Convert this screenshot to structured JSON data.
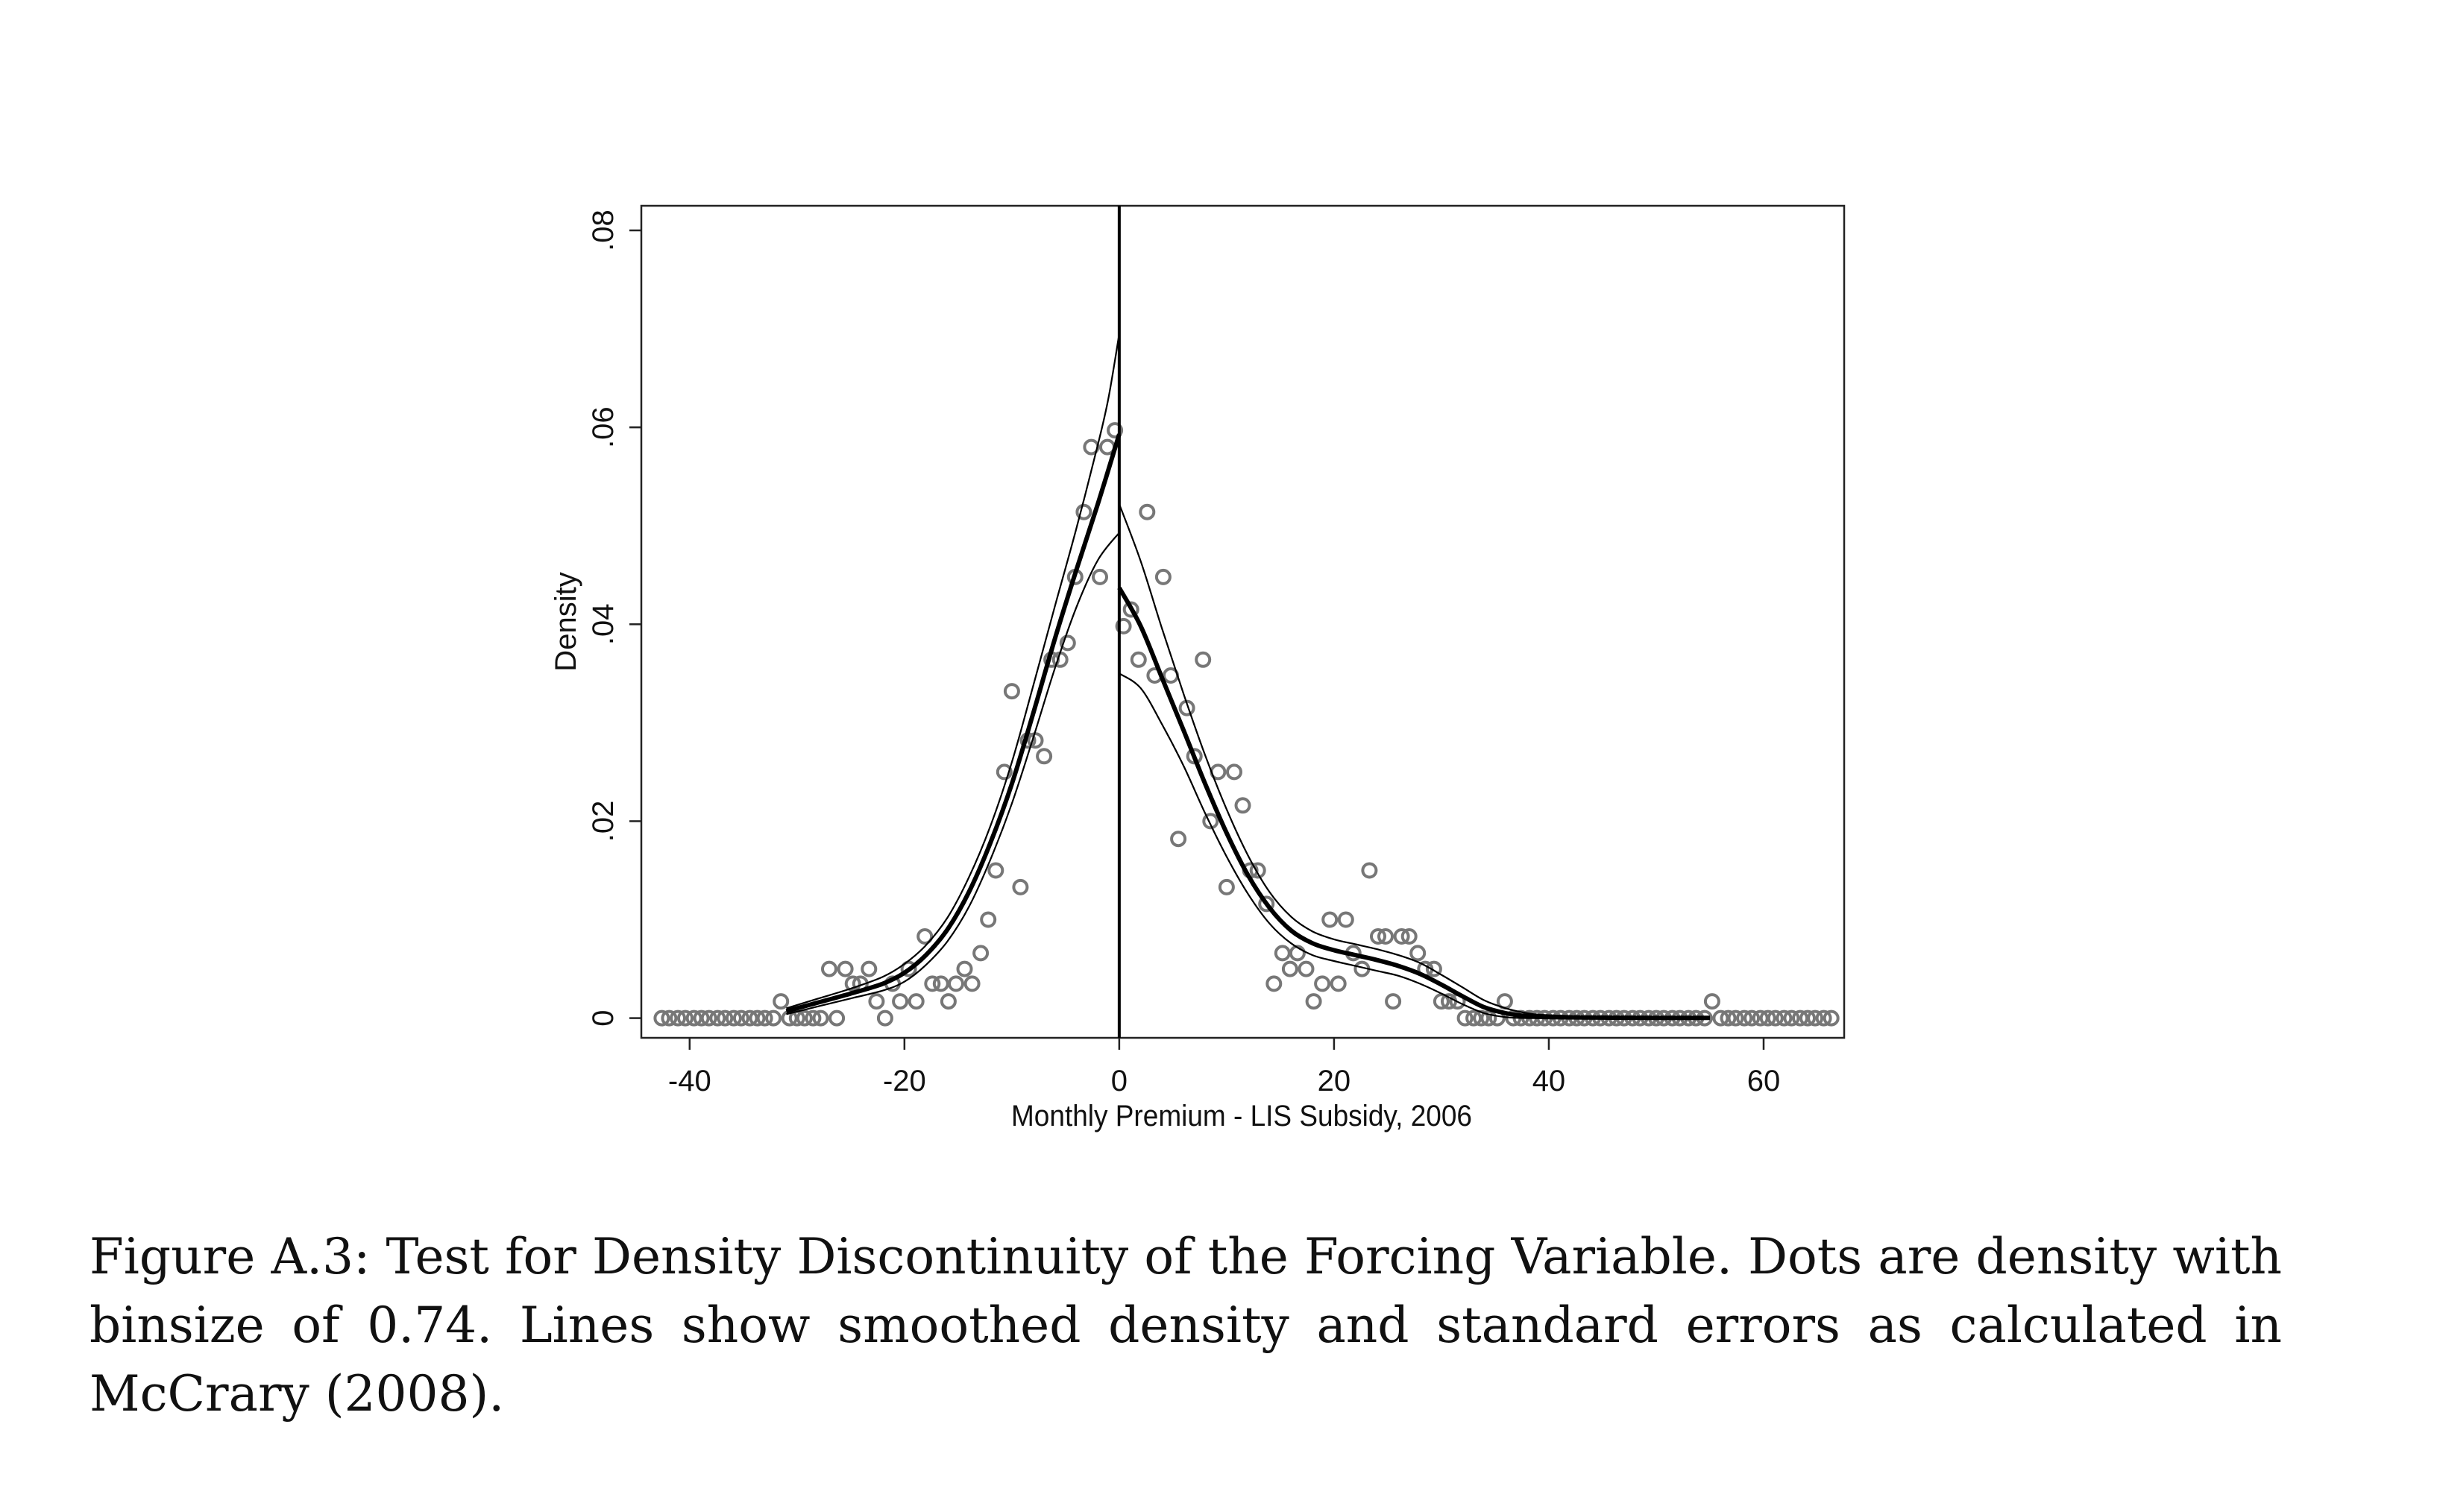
{
  "caption": "Figure A.3: Test for Density Discontinuity of the Forcing Variable. Dots are density with binsize of 0.74. Lines show smoothed density and standard errors as calculated in McCrary (2008).",
  "chart_data": {
    "type": "scatter",
    "xlabel": "Monthly Premium - LIS Subsidy, 2006",
    "ylabel": "Density",
    "xlim": [
      -44.5,
      67.5
    ],
    "ylim": [
      -0.002,
      0.0825
    ],
    "xticks": [
      -40,
      -20,
      0,
      20,
      40,
      60
    ],
    "xtick_labels": [
      "-40",
      "-20",
      "0",
      "20",
      "40",
      "60"
    ],
    "yticks": [
      0,
      0.02,
      0.04,
      0.06,
      0.08
    ],
    "ytick_labels": [
      "0",
      ".02",
      ".04",
      ".06",
      ".08"
    ],
    "cutoff": 0,
    "grid": false,
    "legend": "none",
    "colors": {
      "dots": "#777777",
      "lines": "#000000"
    },
    "dots": {
      "name": "Density, binsize 0.74",
      "points": [
        [
          -42.6,
          0
        ],
        [
          -41.9,
          0
        ],
        [
          -41.1,
          0
        ],
        [
          -40.4,
          0
        ],
        [
          -39.6,
          0
        ],
        [
          -38.9,
          0
        ],
        [
          -38.2,
          0
        ],
        [
          -37.4,
          0
        ],
        [
          -36.7,
          0
        ],
        [
          -35.9,
          0
        ],
        [
          -35.2,
          0
        ],
        [
          -34.4,
          0
        ],
        [
          -33.7,
          0
        ],
        [
          -33.0,
          0
        ],
        [
          -32.2,
          0
        ],
        [
          -31.5,
          0.0017
        ],
        [
          -30.7,
          0
        ],
        [
          -30.0,
          0
        ],
        [
          -29.3,
          0
        ],
        [
          -28.5,
          0
        ],
        [
          -27.8,
          0
        ],
        [
          -27.0,
          0.005
        ],
        [
          -26.3,
          0
        ],
        [
          -25.5,
          0.005
        ],
        [
          -24.8,
          0.0035
        ],
        [
          -24.1,
          0.0035
        ],
        [
          -23.3,
          0.005
        ],
        [
          -22.6,
          0.0017
        ],
        [
          -21.8,
          0
        ],
        [
          -21.1,
          0.0035
        ],
        [
          -20.4,
          0.0017
        ],
        [
          -19.6,
          0.005
        ],
        [
          -18.9,
          0.0017
        ],
        [
          -18.1,
          0.0083
        ],
        [
          -17.4,
          0.0035
        ],
        [
          -16.6,
          0.0035
        ],
        [
          -15.9,
          0.0017
        ],
        [
          -15.2,
          0.0035
        ],
        [
          -14.4,
          0.005
        ],
        [
          -13.7,
          0.0035
        ],
        [
          -12.9,
          0.0066
        ],
        [
          -12.2,
          0.01
        ],
        [
          -11.5,
          0.015
        ],
        [
          -10.7,
          0.025
        ],
        [
          -10.0,
          0.0332
        ],
        [
          -9.2,
          0.0133
        ],
        [
          -8.5,
          0.0282
        ],
        [
          -7.8,
          0.0282
        ],
        [
          -7.0,
          0.0266
        ],
        [
          -6.3,
          0.0364
        ],
        [
          -5.5,
          0.0364
        ],
        [
          -4.8,
          0.0381
        ],
        [
          -4.1,
          0.0448
        ],
        [
          -3.3,
          0.0514
        ],
        [
          -2.6,
          0.058
        ],
        [
          -1.8,
          0.0448
        ],
        [
          -1.1,
          0.058
        ],
        [
          -0.4,
          0.0597
        ],
        [
          0.4,
          0.0398
        ],
        [
          1.1,
          0.0415
        ],
        [
          1.8,
          0.0364
        ],
        [
          2.6,
          0.0514
        ],
        [
          3.3,
          0.0348
        ],
        [
          4.1,
          0.0448
        ],
        [
          4.8,
          0.0348
        ],
        [
          5.5,
          0.0182
        ],
        [
          6.3,
          0.0315
        ],
        [
          7.0,
          0.0266
        ],
        [
          7.8,
          0.0364
        ],
        [
          8.5,
          0.02
        ],
        [
          9.2,
          0.025
        ],
        [
          10.0,
          0.0133
        ],
        [
          10.7,
          0.025
        ],
        [
          11.5,
          0.0216
        ],
        [
          12.2,
          0.015
        ],
        [
          12.9,
          0.015
        ],
        [
          13.7,
          0.0116
        ],
        [
          14.4,
          0.0035
        ],
        [
          15.2,
          0.0066
        ],
        [
          15.9,
          0.005
        ],
        [
          16.6,
          0.0066
        ],
        [
          17.4,
          0.005
        ],
        [
          18.1,
          0.0017
        ],
        [
          18.9,
          0.0035
        ],
        [
          19.6,
          0.01
        ],
        [
          20.4,
          0.0035
        ],
        [
          21.1,
          0.01
        ],
        [
          21.8,
          0.0066
        ],
        [
          22.6,
          0.005
        ],
        [
          23.3,
          0.015
        ],
        [
          24.1,
          0.0083
        ],
        [
          24.8,
          0.0083
        ],
        [
          25.5,
          0.0017
        ],
        [
          26.3,
          0.0083
        ],
        [
          27.0,
          0.0083
        ],
        [
          27.8,
          0.0066
        ],
        [
          28.5,
          0.005
        ],
        [
          29.3,
          0.005
        ],
        [
          30.0,
          0.0017
        ],
        [
          30.7,
          0.0017
        ],
        [
          31.5,
          0.0017
        ],
        [
          32.2,
          0
        ],
        [
          33.0,
          0
        ],
        [
          33.7,
          0
        ],
        [
          34.4,
          0
        ],
        [
          35.2,
          0
        ],
        [
          35.9,
          0.0017
        ],
        [
          36.7,
          0
        ],
        [
          37.4,
          0
        ],
        [
          38.2,
          0
        ],
        [
          38.9,
          0
        ],
        [
          39.6,
          0
        ],
        [
          40.4,
          0
        ],
        [
          41.1,
          0
        ],
        [
          41.9,
          0
        ],
        [
          42.6,
          0
        ],
        [
          43.3,
          0
        ],
        [
          44.1,
          0
        ],
        [
          44.8,
          0
        ],
        [
          45.6,
          0
        ],
        [
          46.3,
          0
        ],
        [
          47.0,
          0
        ],
        [
          47.8,
          0
        ],
        [
          48.5,
          0
        ],
        [
          49.3,
          0
        ],
        [
          50.0,
          0
        ],
        [
          50.7,
          0
        ],
        [
          51.5,
          0
        ],
        [
          52.2,
          0
        ],
        [
          53.0,
          0
        ],
        [
          53.7,
          0
        ],
        [
          54.5,
          0
        ],
        [
          55.2,
          0.0017
        ],
        [
          56.0,
          0
        ],
        [
          56.7,
          0
        ],
        [
          57.4,
          0
        ],
        [
          58.2,
          0
        ],
        [
          58.9,
          0
        ],
        [
          59.7,
          0
        ],
        [
          60.4,
          0
        ],
        [
          61.1,
          0
        ],
        [
          61.9,
          0
        ],
        [
          62.6,
          0
        ],
        [
          63.4,
          0
        ],
        [
          64.1,
          0
        ],
        [
          64.8,
          0
        ],
        [
          65.6,
          0
        ],
        [
          66.3,
          0
        ]
      ]
    },
    "series": [
      {
        "segment": "left",
        "role": "estimate",
        "points": [
          [
            -31,
            0.0007
          ],
          [
            -28,
            0.0016
          ],
          [
            -25,
            0.0025
          ],
          [
            -22,
            0.0035
          ],
          [
            -20,
            0.0046
          ],
          [
            -18,
            0.0064
          ],
          [
            -16,
            0.009
          ],
          [
            -14,
            0.0128
          ],
          [
            -12,
            0.0178
          ],
          [
            -10,
            0.0238
          ],
          [
            -8,
            0.031
          ],
          [
            -6,
            0.0385
          ],
          [
            -4,
            0.0455
          ],
          [
            -2,
            0.0522
          ],
          [
            0,
            0.0593
          ]
        ]
      },
      {
        "segment": "left",
        "role": "upper",
        "points": [
          [
            -31,
            0.001
          ],
          [
            -28,
            0.002
          ],
          [
            -25,
            0.003
          ],
          [
            -22,
            0.0042
          ],
          [
            -20,
            0.0055
          ],
          [
            -18,
            0.0074
          ],
          [
            -16,
            0.0102
          ],
          [
            -14,
            0.0143
          ],
          [
            -12,
            0.0195
          ],
          [
            -10,
            0.026
          ],
          [
            -8,
            0.0338
          ],
          [
            -6,
            0.0418
          ],
          [
            -4,
            0.0497
          ],
          [
            -2,
            0.0582
          ],
          [
            -1,
            0.063
          ],
          [
            0,
            0.0695
          ]
        ]
      },
      {
        "segment": "left",
        "role": "lower",
        "points": [
          [
            -31,
            0.0004
          ],
          [
            -28,
            0.0012
          ],
          [
            -25,
            0.002
          ],
          [
            -22,
            0.0028
          ],
          [
            -20,
            0.0037
          ],
          [
            -18,
            0.0054
          ],
          [
            -16,
            0.0078
          ],
          [
            -14,
            0.0113
          ],
          [
            -12,
            0.0161
          ],
          [
            -10,
            0.0218
          ],
          [
            -8,
            0.0285
          ],
          [
            -6,
            0.0355
          ],
          [
            -4,
            0.0417
          ],
          [
            -2,
            0.0465
          ],
          [
            0,
            0.0493
          ]
        ]
      },
      {
        "segment": "right",
        "role": "estimate",
        "points": [
          [
            0,
            0.0437
          ],
          [
            2,
            0.0398
          ],
          [
            4,
            0.0345
          ],
          [
            6,
            0.0292
          ],
          [
            8,
            0.0238
          ],
          [
            10,
            0.0188
          ],
          [
            12,
            0.0145
          ],
          [
            14,
            0.0112
          ],
          [
            16,
            0.0089
          ],
          [
            18,
            0.0076
          ],
          [
            20,
            0.0069
          ],
          [
            22,
            0.0064
          ],
          [
            24,
            0.0059
          ],
          [
            26,
            0.0053
          ],
          [
            28,
            0.0045
          ],
          [
            30,
            0.0034
          ],
          [
            32,
            0.0022
          ],
          [
            34,
            0.0011
          ],
          [
            36,
            0.0005
          ],
          [
            38,
            0.0002
          ],
          [
            40,
            0.0001
          ],
          [
            45,
            5e-05
          ],
          [
            50,
            3e-05
          ],
          [
            55,
            2e-05
          ]
        ]
      },
      {
        "segment": "right",
        "role": "upper",
        "points": [
          [
            0,
            0.0522
          ],
          [
            2,
            0.0464
          ],
          [
            4,
            0.0395
          ],
          [
            6,
            0.0329
          ],
          [
            8,
            0.0267
          ],
          [
            10,
            0.0212
          ],
          [
            12,
            0.0165
          ],
          [
            14,
            0.0128
          ],
          [
            16,
            0.0103
          ],
          [
            18,
            0.0088
          ],
          [
            20,
            0.008
          ],
          [
            22,
            0.0075
          ],
          [
            24,
            0.007
          ],
          [
            26,
            0.0064
          ],
          [
            28,
            0.0056
          ],
          [
            30,
            0.0044
          ],
          [
            32,
            0.0031
          ],
          [
            34,
            0.0018
          ],
          [
            36,
            0.001
          ],
          [
            38,
            0.0005
          ],
          [
            40,
            0.0003
          ],
          [
            45,
            0.00015
          ],
          [
            50,
            0.0001
          ],
          [
            55,
            8e-05
          ]
        ]
      },
      {
        "segment": "right",
        "role": "lower",
        "points": [
          [
            0,
            0.035
          ],
          [
            2,
            0.0335
          ],
          [
            4,
            0.0298
          ],
          [
            6,
            0.0256
          ],
          [
            8,
            0.0208
          ],
          [
            10,
            0.0164
          ],
          [
            12,
            0.0126
          ],
          [
            14,
            0.0096
          ],
          [
            16,
            0.0076
          ],
          [
            18,
            0.0064
          ],
          [
            20,
            0.0058
          ],
          [
            22,
            0.0053
          ],
          [
            24,
            0.0048
          ],
          [
            26,
            0.0043
          ],
          [
            28,
            0.0035
          ],
          [
            30,
            0.0025
          ],
          [
            32,
            0.0014
          ],
          [
            34,
            0.0005
          ],
          [
            36,
            0.0001
          ],
          [
            38,
            0
          ],
          [
            40,
            0
          ],
          [
            45,
            0
          ],
          [
            50,
            0
          ],
          [
            55,
            0
          ]
        ]
      }
    ]
  }
}
